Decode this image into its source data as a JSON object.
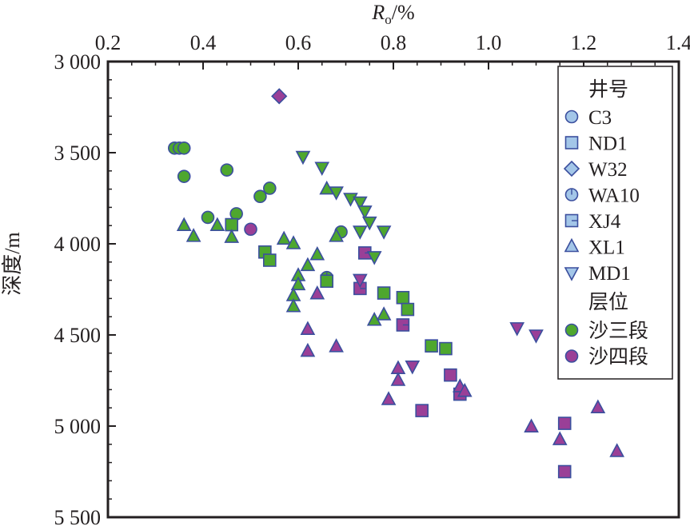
{
  "chart_data": {
    "type": "scatter",
    "xlabel_main": "R",
    "xlabel_sub": "o",
    "xlabel_unit": "/%",
    "ylabel": "深度/m",
    "xlim": [
      0.2,
      1.4
    ],
    "ylim": [
      3000,
      5500
    ],
    "x_ticks": [
      "0.2",
      "0.4",
      "0.6",
      "0.8",
      "1.0",
      "1.2",
      "1.4"
    ],
    "y_ticks": [
      "3 000",
      "3 500",
      "4 000",
      "4 500",
      "5 000",
      "5 500"
    ],
    "axis_position": "x-axis top, y-axis inverted",
    "legend": {
      "position": "top-right",
      "well_title": "井号",
      "layer_title": "层位",
      "wells": [
        {
          "name": "C3",
          "marker": "circle"
        },
        {
          "name": "ND1",
          "marker": "square"
        },
        {
          "name": "W32",
          "marker": "diamond"
        },
        {
          "name": "WA10",
          "marker": "circle-line"
        },
        {
          "name": "XJ4",
          "marker": "square-line"
        },
        {
          "name": "XL1",
          "marker": "triangle-up"
        },
        {
          "name": "MD1",
          "marker": "triangle-down"
        }
      ],
      "layers": [
        {
          "name": "沙三段",
          "color": "#4ea72e"
        },
        {
          "name": "沙四段",
          "color": "#9a3f97"
        }
      ]
    },
    "colors": {
      "legend_marker_fill": "#a3c6e8",
      "marker_edge": "#3b4f9e",
      "sha3": "#4ea72e",
      "sha4": "#9a3f97",
      "axis": "#231f20"
    },
    "series": [
      {
        "well": "C3",
        "layer": "沙三段",
        "marker": "circle",
        "points": [
          [
            0.34,
            3475
          ],
          [
            0.35,
            3475
          ],
          [
            0.36,
            3475
          ],
          [
            0.36,
            3630
          ],
          [
            0.41,
            3855
          ],
          [
            0.47,
            3835
          ],
          [
            0.52,
            3740
          ],
          [
            0.54,
            3695
          ],
          [
            0.45,
            3595
          ],
          [
            0.69,
            3935
          ]
        ]
      },
      {
        "well": "C3",
        "layer": "沙四段",
        "marker": "circle",
        "points": [
          [
            0.5,
            3920
          ]
        ]
      },
      {
        "well": "W32",
        "layer": "沙四段",
        "marker": "diamond",
        "points": [
          [
            0.56,
            3190
          ]
        ]
      },
      {
        "well": "WA10",
        "layer": "沙三段",
        "marker": "circle-line",
        "points": [
          [
            0.66,
            4185
          ]
        ]
      },
      {
        "well": "ND1",
        "layer": "沙三段",
        "marker": "square",
        "points": [
          [
            0.46,
            3895
          ],
          [
            0.53,
            4045
          ],
          [
            0.54,
            4090
          ],
          [
            0.66,
            4205
          ],
          [
            0.78,
            4270
          ],
          [
            0.82,
            4295
          ],
          [
            0.83,
            4360
          ],
          [
            0.88,
            4560
          ],
          [
            0.91,
            4575
          ]
        ]
      },
      {
        "well": "ND1",
        "layer": "沙四段",
        "marker": "square",
        "points": [
          [
            0.86,
            4915
          ],
          [
            1.16,
            4985
          ],
          [
            1.16,
            5250
          ],
          [
            0.92,
            4720
          ],
          [
            0.94,
            4825
          ]
        ]
      },
      {
        "well": "XJ4",
        "layer": "沙四段",
        "marker": "square-line",
        "points": [
          [
            0.74,
            4050
          ],
          [
            0.73,
            4245
          ],
          [
            0.82,
            4445
          ]
        ]
      },
      {
        "well": "XL1",
        "layer": "沙三段",
        "marker": "triangle-up",
        "points": [
          [
            0.36,
            3900
          ],
          [
            0.38,
            3960
          ],
          [
            0.43,
            3900
          ],
          [
            0.46,
            3965
          ],
          [
            0.57,
            3975
          ],
          [
            0.59,
            4000
          ],
          [
            0.6,
            4175
          ],
          [
            0.6,
            4225
          ],
          [
            0.59,
            4285
          ],
          [
            0.59,
            4345
          ],
          [
            0.62,
            4120
          ],
          [
            0.64,
            4060
          ],
          [
            0.66,
            3700
          ],
          [
            0.68,
            3960
          ],
          [
            0.76,
            4420
          ],
          [
            0.78,
            4390
          ]
        ]
      },
      {
        "well": "XL1",
        "layer": "沙四段",
        "marker": "triangle-up",
        "points": [
          [
            0.62,
            4470
          ],
          [
            0.62,
            4590
          ],
          [
            0.64,
            4275
          ],
          [
            0.68,
            4565
          ],
          [
            0.79,
            4855
          ],
          [
            0.81,
            4685
          ],
          [
            0.81,
            4750
          ],
          [
            0.94,
            4785
          ],
          [
            0.95,
            4810
          ],
          [
            1.09,
            5005
          ],
          [
            1.15,
            5075
          ],
          [
            1.23,
            4900
          ],
          [
            1.27,
            5140
          ]
        ]
      },
      {
        "well": "MD1",
        "layer": "沙三段",
        "marker": "triangle-down",
        "points": [
          [
            0.61,
            3520
          ],
          [
            0.65,
            3580
          ],
          [
            0.68,
            3715
          ],
          [
            0.71,
            3750
          ],
          [
            0.73,
            3770
          ],
          [
            0.74,
            3820
          ],
          [
            0.75,
            3880
          ],
          [
            0.73,
            3930
          ],
          [
            0.78,
            3930
          ],
          [
            0.76,
            4070
          ]
        ]
      },
      {
        "well": "MD1",
        "layer": "沙四段",
        "marker": "triangle-down",
        "points": [
          [
            0.73,
            4195
          ],
          [
            0.84,
            4670
          ],
          [
            1.06,
            4460
          ],
          [
            1.1,
            4500
          ]
        ]
      }
    ]
  }
}
